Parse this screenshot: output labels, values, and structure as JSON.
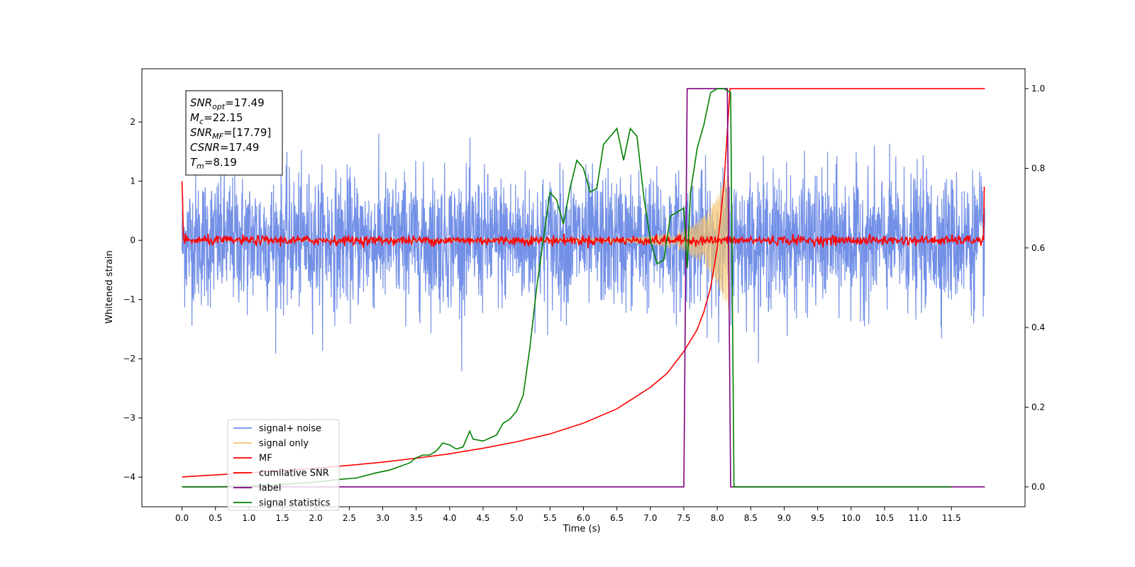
{
  "chart_data": {
    "type": "line",
    "xlabel": "Time (s)",
    "ylabel": "Whitened strain",
    "xlim": [
      -0.6,
      12.6
    ],
    "ylim_left": [
      -4.5,
      2.9
    ],
    "ylim_right": [
      -0.05,
      1.05
    ],
    "x_ticks": [
      0.0,
      0.5,
      1.0,
      1.5,
      2.0,
      2.5,
      3.0,
      3.5,
      4.0,
      4.5,
      5.0,
      5.5,
      6.0,
      6.5,
      7.0,
      7.5,
      8.0,
      8.5,
      9.0,
      9.5,
      10.0,
      10.5,
      11.0,
      11.5
    ],
    "x_tick_labels": [
      "0.0",
      "0.5",
      "1.0",
      "1.5",
      "2.0",
      "2.5",
      "3.0",
      "3.5",
      "4.0",
      "4.5",
      "5.0",
      "5.5",
      "6.0",
      "6.5",
      "7.0",
      "7.5",
      "8.0",
      "8.5",
      "9.0",
      "9.5",
      "10.0",
      "10.5",
      "11.0",
      "11.5"
    ],
    "y_ticks_left": [
      -4,
      -3,
      -2,
      -1,
      0,
      1,
      2
    ],
    "y_tick_labels_left": [
      "−4",
      "−3",
      "−2",
      "−1",
      "0",
      "1",
      "2"
    ],
    "y_ticks_right": [
      0.0,
      0.2,
      0.4,
      0.6,
      0.8,
      1.0
    ],
    "y_tick_labels_right": [
      "0.0",
      "0.2",
      "0.4",
      "0.6",
      "0.8",
      "1.0"
    ],
    "annotation": {
      "lines": [
        {
          "base": "SNR",
          "sub": "opt",
          "rest": "=17.49"
        },
        {
          "base": "M",
          "sub": "c",
          "rest": "=22.15"
        },
        {
          "base": "SNR",
          "sub": "MF",
          "rest": "=[17.79]"
        },
        {
          "base": "CSNR",
          "sub": "",
          "rest": "=17.49"
        },
        {
          "base": "T",
          "sub": "m",
          "rest": "=8.19"
        }
      ]
    },
    "legend": {
      "placement": "lower-left",
      "entries": [
        {
          "label": "signal+ noise",
          "color": "#6b8ae6"
        },
        {
          "label": "signal only",
          "color": "#f5c36b"
        },
        {
          "label": "MF",
          "color": "#ff0000"
        },
        {
          "label": "cumilative SNR",
          "color": "#ff0000"
        },
        {
          "label": "label",
          "color": "#800080"
        },
        {
          "label": "signal statistics",
          "color": "#008000"
        }
      ]
    },
    "series": [
      {
        "name": "signal+ noise",
        "axis": "left",
        "color": "#6b8ae6",
        "kind": "noise",
        "x_range": [
          0.0,
          12.0
        ],
        "std": 0.55,
        "peak": 2.6,
        "trough": -2.6,
        "step": 0.004
      },
      {
        "name": "signal only",
        "axis": "left",
        "color": "#f5c36b",
        "kind": "chirp",
        "x_range": [
          0.0,
          8.19
        ],
        "envelope": {
          "t": [
            0,
            6.5,
            7.0,
            7.5,
            7.8,
            8.0,
            8.1,
            8.19
          ],
          "a": [
            0.005,
            0.03,
            0.07,
            0.18,
            0.4,
            0.75,
            1.05,
            1.2
          ]
        }
      },
      {
        "name": "MF",
        "axis": "left",
        "color": "#ff0000",
        "kind": "mf",
        "x_range": [
          0.0,
          12.0
        ],
        "std": 0.04,
        "step": 0.01
      },
      {
        "name": "cumilative SNR",
        "axis": "right",
        "color": "#ff0000",
        "x": [
          0.0,
          0.5,
          1.0,
          1.5,
          2.0,
          2.5,
          3.0,
          3.5,
          4.0,
          4.5,
          5.0,
          5.5,
          6.0,
          6.5,
          7.0,
          7.25,
          7.5,
          7.7,
          7.8,
          7.9,
          8.0,
          8.1,
          8.19,
          12.0
        ],
        "y": [
          0.025,
          0.03,
          0.035,
          0.041,
          0.047,
          0.054,
          0.062,
          0.072,
          0.083,
          0.097,
          0.113,
          0.133,
          0.16,
          0.196,
          0.25,
          0.285,
          0.34,
          0.395,
          0.44,
          0.5,
          0.6,
          0.76,
          1.0,
          1.0
        ]
      },
      {
        "name": "label",
        "axis": "right",
        "color": "#800080",
        "x": [
          0.0,
          7.5,
          7.55,
          8.15,
          8.2,
          12.0
        ],
        "y": [
          0.0,
          0.0,
          1.0,
          1.0,
          0.0,
          0.0
        ]
      },
      {
        "name": "signal statistics",
        "axis": "right",
        "color": "#008000",
        "x": [
          0.0,
          0.5,
          1.0,
          1.5,
          2.0,
          2.3,
          2.6,
          2.9,
          3.1,
          3.4,
          3.5,
          3.6,
          3.7,
          3.8,
          3.9,
          4.0,
          4.1,
          4.2,
          4.3,
          4.35,
          4.5,
          4.7,
          4.8,
          4.9,
          5.0,
          5.1,
          5.2,
          5.3,
          5.4,
          5.5,
          5.6,
          5.7,
          5.8,
          5.9,
          6.0,
          6.1,
          6.2,
          6.3,
          6.5,
          6.6,
          6.7,
          6.8,
          6.9,
          7.0,
          7.1,
          7.2,
          7.3,
          7.5,
          7.55,
          7.6,
          7.7,
          7.8,
          7.9,
          8.0,
          8.1,
          8.2,
          8.25,
          11.5
        ],
        "y": [
          0.0,
          0.0,
          0.002,
          0.006,
          0.012,
          0.018,
          0.022,
          0.035,
          0.042,
          0.06,
          0.073,
          0.08,
          0.08,
          0.09,
          0.11,
          0.105,
          0.095,
          0.1,
          0.14,
          0.12,
          0.115,
          0.13,
          0.16,
          0.17,
          0.19,
          0.23,
          0.35,
          0.5,
          0.62,
          0.74,
          0.72,
          0.66,
          0.75,
          0.82,
          0.8,
          0.74,
          0.75,
          0.86,
          0.9,
          0.82,
          0.9,
          0.88,
          0.73,
          0.62,
          0.56,
          0.57,
          0.68,
          0.7,
          0.55,
          0.74,
          0.85,
          0.91,
          0.99,
          1.0,
          1.0,
          0.99,
          0.0,
          0.0
        ]
      }
    ]
  }
}
